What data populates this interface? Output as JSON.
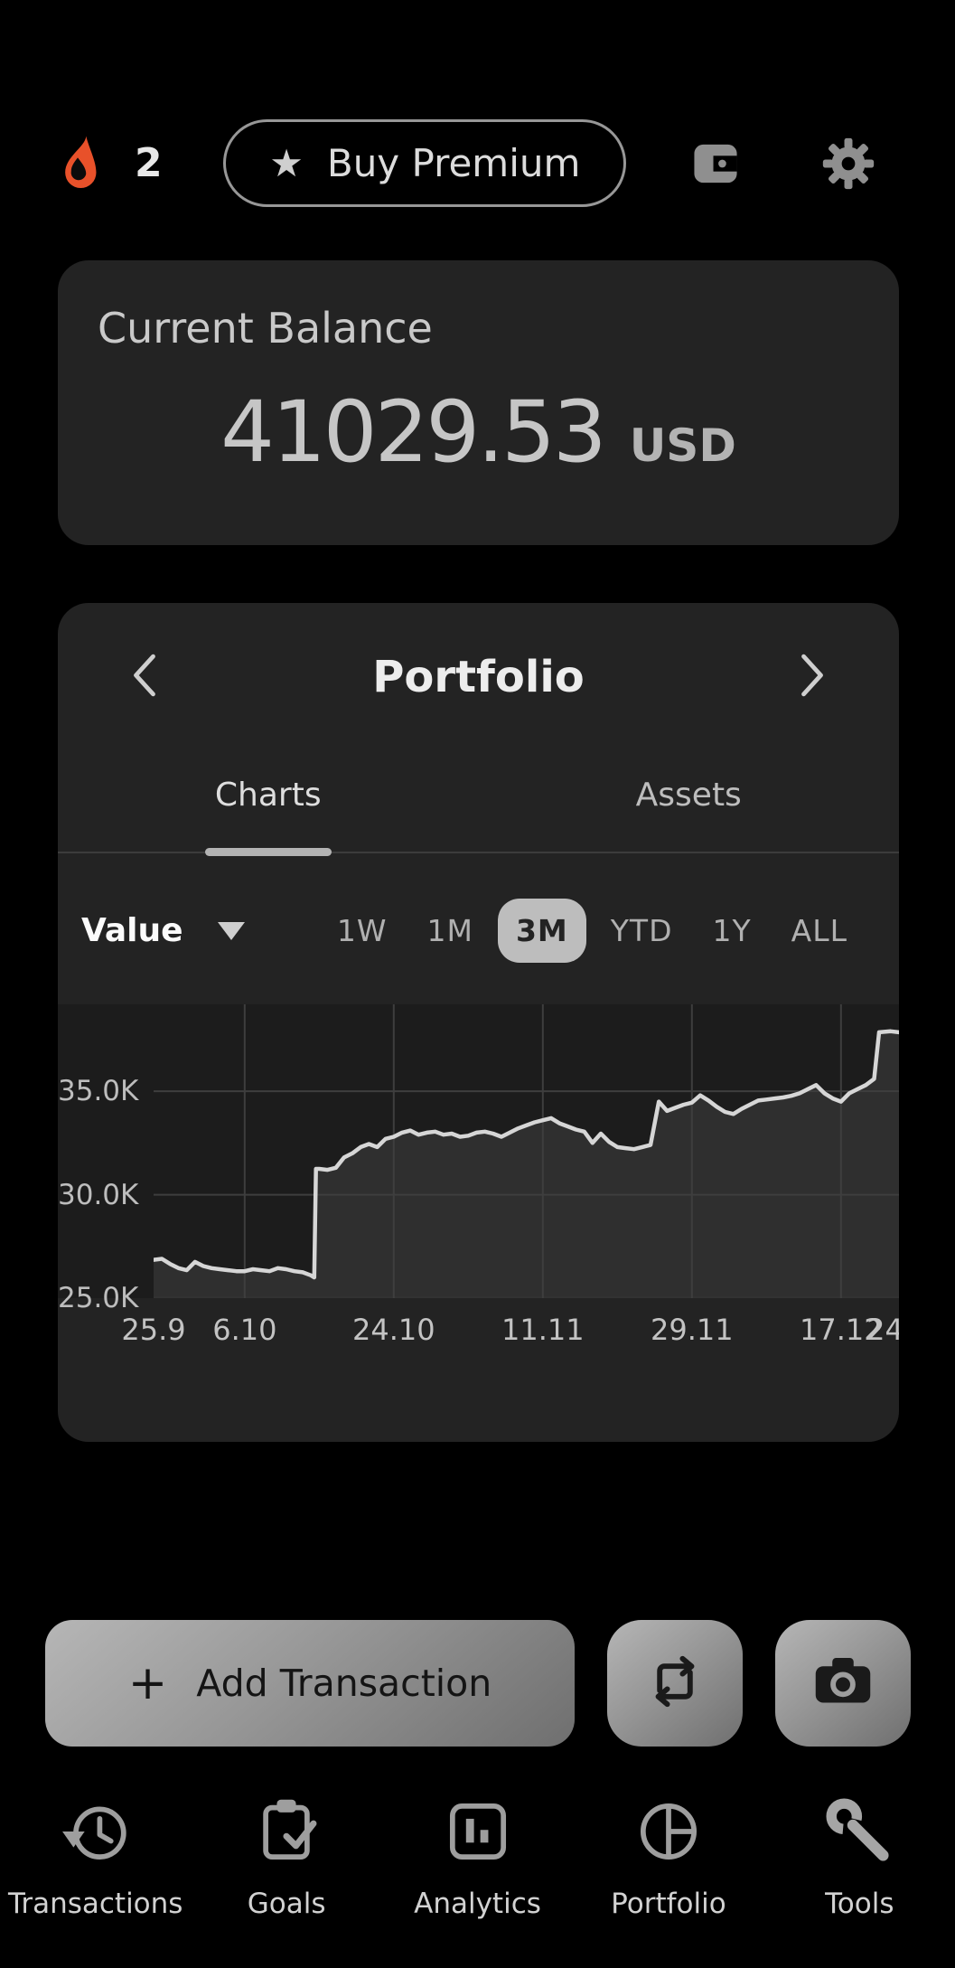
{
  "header": {
    "streak_count": "2",
    "buy_premium_label": "Buy Premium",
    "star_glyph": "★"
  },
  "balance_card": {
    "title": "Current Balance",
    "amount": "41029.53",
    "currency": "USD"
  },
  "portfolio_card": {
    "title": "Portfolio",
    "tabs": [
      {
        "label": "Charts",
        "active": true
      },
      {
        "label": "Assets",
        "active": false
      }
    ],
    "metric_label": "Value",
    "active_range": "3M",
    "ranges": [
      {
        "label": "1W",
        "active": false
      },
      {
        "label": "1M",
        "active": false
      },
      {
        "label": "3M",
        "active": true
      },
      {
        "label": "YTD",
        "active": false
      },
      {
        "label": "1Y",
        "active": false
      },
      {
        "label": "ALL",
        "active": false
      }
    ]
  },
  "chart_data": {
    "type": "area",
    "series_name": "Portfolio value (USD)",
    "xlim": [
      0,
      90
    ],
    "ylim": [
      25,
      39.2
    ],
    "y_unit": "K",
    "grid": "vertical at date ticks, horizontal at 30K and 35K",
    "legend": "none",
    "y_ticks": [
      {
        "label": "35.0K",
        "value": 35,
        "grid": true
      },
      {
        "label": "30.0K",
        "value": 30,
        "grid": true
      },
      {
        "label": "25.0K",
        "value": 25,
        "grid": false
      }
    ],
    "x_ticks": [
      {
        "label": "25.9",
        "day": 0,
        "grid": false
      },
      {
        "label": "6.10",
        "day": 11,
        "grid": true
      },
      {
        "label": "24.10",
        "day": 29,
        "grid": true
      },
      {
        "label": "11.11",
        "day": 47,
        "grid": true
      },
      {
        "label": "29.11",
        "day": 65,
        "grid": true
      },
      {
        "label": "17.12",
        "day": 83,
        "grid": true
      },
      {
        "label": "24",
        "day": 90,
        "grid": false
      }
    ],
    "points": [
      [
        0,
        26.85
      ],
      [
        1,
        26.9
      ],
      [
        2,
        26.65
      ],
      [
        3,
        26.45
      ],
      [
        4,
        26.35
      ],
      [
        5,
        26.75
      ],
      [
        6,
        26.55
      ],
      [
        7,
        26.45
      ],
      [
        8,
        26.4
      ],
      [
        9,
        26.35
      ],
      [
        10,
        26.3
      ],
      [
        11,
        26.3
      ],
      [
        12,
        26.4
      ],
      [
        13,
        26.35
      ],
      [
        14,
        26.3
      ],
      [
        15,
        26.45
      ],
      [
        16,
        26.4
      ],
      [
        17,
        26.3
      ],
      [
        18,
        26.25
      ],
      [
        19,
        26.1
      ],
      [
        19.4,
        26.0
      ],
      [
        19.6,
        31.25
      ],
      [
        20,
        31.25
      ],
      [
        21,
        31.2
      ],
      [
        22,
        31.3
      ],
      [
        23,
        31.8
      ],
      [
        24,
        32.0
      ],
      [
        25,
        32.3
      ],
      [
        26,
        32.45
      ],
      [
        27,
        32.3
      ],
      [
        28,
        32.7
      ],
      [
        29,
        32.8
      ],
      [
        30,
        33.0
      ],
      [
        31,
        33.1
      ],
      [
        32,
        32.9
      ],
      [
        33,
        33.0
      ],
      [
        34,
        33.05
      ],
      [
        35,
        32.9
      ],
      [
        36,
        32.95
      ],
      [
        37,
        32.8
      ],
      [
        38,
        32.85
      ],
      [
        39,
        33.0
      ],
      [
        40,
        33.05
      ],
      [
        41,
        32.95
      ],
      [
        42,
        32.8
      ],
      [
        43,
        33.0
      ],
      [
        44,
        33.2
      ],
      [
        45,
        33.35
      ],
      [
        46,
        33.5
      ],
      [
        47,
        33.6
      ],
      [
        48,
        33.7
      ],
      [
        49,
        33.45
      ],
      [
        50,
        33.3
      ],
      [
        51,
        33.15
      ],
      [
        52,
        33.05
      ],
      [
        53,
        32.5
      ],
      [
        54,
        32.95
      ],
      [
        55,
        32.55
      ],
      [
        56,
        32.3
      ],
      [
        57,
        32.25
      ],
      [
        58,
        32.2
      ],
      [
        59,
        32.3
      ],
      [
        60,
        32.4
      ],
      [
        61,
        34.5
      ],
      [
        62,
        34.05
      ],
      [
        63,
        34.2
      ],
      [
        64,
        34.35
      ],
      [
        65,
        34.45
      ],
      [
        66,
        34.8
      ],
      [
        67,
        34.55
      ],
      [
        68,
        34.25
      ],
      [
        69,
        34.0
      ],
      [
        70,
        33.9
      ],
      [
        71,
        34.15
      ],
      [
        72,
        34.35
      ],
      [
        73,
        34.55
      ],
      [
        74,
        34.6
      ],
      [
        75,
        34.65
      ],
      [
        76,
        34.7
      ],
      [
        77,
        34.78
      ],
      [
        78,
        34.9
      ],
      [
        79,
        35.1
      ],
      [
        80,
        35.3
      ],
      [
        81,
        34.9
      ],
      [
        82,
        34.65
      ],
      [
        83,
        34.5
      ],
      [
        84,
        34.9
      ],
      [
        85,
        35.1
      ],
      [
        86,
        35.3
      ],
      [
        87,
        35.6
      ],
      [
        87.6,
        37.85
      ],
      [
        89,
        37.9
      ],
      [
        90,
        37.85
      ]
    ]
  },
  "actions": {
    "add_transaction_label": "Add Transaction",
    "plus_glyph": "+"
  },
  "bottom_nav": {
    "items": [
      {
        "label": "Transactions",
        "icon": "history-icon"
      },
      {
        "label": "Goals",
        "icon": "clipboard-check-icon"
      },
      {
        "label": "Analytics",
        "icon": "bar-chart-icon"
      },
      {
        "label": "Portfolio",
        "icon": "pie-chart-icon"
      },
      {
        "label": "Tools",
        "icon": "wrench-icon"
      }
    ]
  },
  "colors": {
    "page_bg": "#000000",
    "card_bg": "#232323",
    "flame_accent": "#e8512a",
    "plot_bg": "#1c1c1c",
    "chart_line": "#d6d6d6",
    "chart_fill": "#2f2f2f",
    "gridline": "#3e3e3e",
    "range_active_bg": "#bdbdbd",
    "button_gradient_start": "#b6b6b6",
    "button_gradient_end": "#6f6f6f"
  }
}
